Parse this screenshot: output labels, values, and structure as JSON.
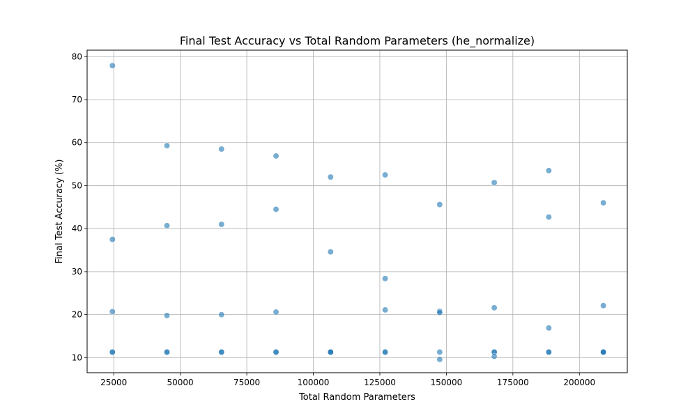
{
  "chart_data": {
    "type": "scatter",
    "title": "Final Test Accuracy vs Total Random Parameters (he_normalize)",
    "xlabel": "Total Random Parameters",
    "ylabel": "Final Test Accuracy (%)",
    "xlim": [
      15000,
      218000
    ],
    "ylim": [
      6.5,
      81.5
    ],
    "xticks": [
      25000,
      50000,
      75000,
      100000,
      125000,
      150000,
      175000,
      200000
    ],
    "xtick_labels": [
      "25000",
      "50000",
      "75000",
      "100000",
      "125000",
      "150000",
      "175000",
      "200000"
    ],
    "yticks": [
      10,
      20,
      30,
      40,
      50,
      60,
      70,
      80
    ],
    "ytick_labels": [
      "10",
      "20",
      "30",
      "40",
      "50",
      "60",
      "70",
      "80"
    ],
    "grid": true,
    "marker_color": "#1f77b4",
    "marker_alpha": 0.6,
    "points": [
      {
        "x": 24500,
        "y": 77.9
      },
      {
        "x": 24500,
        "y": 37.5
      },
      {
        "x": 24500,
        "y": 20.7
      },
      {
        "x": 24500,
        "y": 11.3
      },
      {
        "x": 24500,
        "y": 11.3
      },
      {
        "x": 45000,
        "y": 59.3
      },
      {
        "x": 45000,
        "y": 40.7
      },
      {
        "x": 45000,
        "y": 19.8
      },
      {
        "x": 45000,
        "y": 11.3
      },
      {
        "x": 45000,
        "y": 11.3
      },
      {
        "x": 65500,
        "y": 58.5
      },
      {
        "x": 65500,
        "y": 41.0
      },
      {
        "x": 65500,
        "y": 20.0
      },
      {
        "x": 65500,
        "y": 11.3
      },
      {
        "x": 65500,
        "y": 11.3
      },
      {
        "x": 86000,
        "y": 56.9
      },
      {
        "x": 86000,
        "y": 44.5
      },
      {
        "x": 86000,
        "y": 20.6
      },
      {
        "x": 86000,
        "y": 11.3
      },
      {
        "x": 86000,
        "y": 11.3
      },
      {
        "x": 106500,
        "y": 52.0
      },
      {
        "x": 106500,
        "y": 34.6
      },
      {
        "x": 106500,
        "y": 11.3
      },
      {
        "x": 106500,
        "y": 11.3
      },
      {
        "x": 106500,
        "y": 11.3
      },
      {
        "x": 127000,
        "y": 52.5
      },
      {
        "x": 127000,
        "y": 28.4
      },
      {
        "x": 127000,
        "y": 21.1
      },
      {
        "x": 127000,
        "y": 11.3
      },
      {
        "x": 127000,
        "y": 11.3
      },
      {
        "x": 147500,
        "y": 45.6
      },
      {
        "x": 147500,
        "y": 20.8
      },
      {
        "x": 147500,
        "y": 20.5
      },
      {
        "x": 147500,
        "y": 11.3
      },
      {
        "x": 147500,
        "y": 9.6
      },
      {
        "x": 168000,
        "y": 50.7
      },
      {
        "x": 168000,
        "y": 21.6
      },
      {
        "x": 168000,
        "y": 11.3
      },
      {
        "x": 168000,
        "y": 11.3
      },
      {
        "x": 168000,
        "y": 10.3
      },
      {
        "x": 188500,
        "y": 53.5
      },
      {
        "x": 188500,
        "y": 42.7
      },
      {
        "x": 188500,
        "y": 16.9
      },
      {
        "x": 188500,
        "y": 11.3
      },
      {
        "x": 188500,
        "y": 11.3
      },
      {
        "x": 209000,
        "y": 46.0
      },
      {
        "x": 209000,
        "y": 22.1
      },
      {
        "x": 209000,
        "y": 11.3
      },
      {
        "x": 209000,
        "y": 11.3
      },
      {
        "x": 209000,
        "y": 11.3
      }
    ]
  }
}
